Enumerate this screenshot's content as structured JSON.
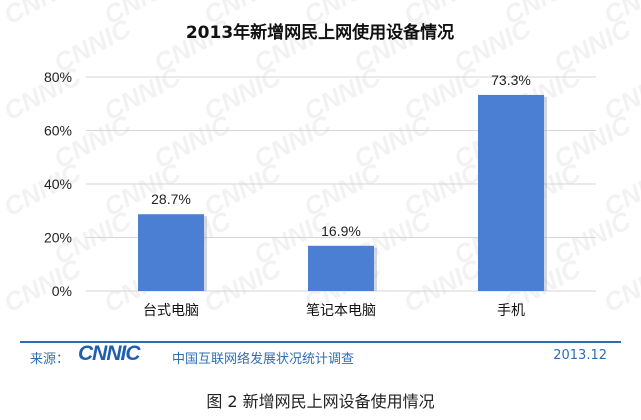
{
  "chart_data": {
    "type": "bar",
    "title": "2013年新增网民上网使用设备情况",
    "categories": [
      "台式电脑",
      "笔记本电脑",
      "手机"
    ],
    "values": [
      28.7,
      16.9,
      73.3
    ],
    "value_labels": [
      "28.7%",
      "16.9%",
      "73.3%"
    ],
    "ylim": [
      0,
      80
    ],
    "yticks": [
      "0%",
      "20%",
      "40%",
      "60%",
      "80%"
    ],
    "ytick_values": [
      0,
      20,
      40,
      60,
      80
    ],
    "xlabel": "",
    "ylabel": "",
    "grid": true,
    "bar_color": "#4a7fd4",
    "grid_color": "#d6d6d6"
  },
  "watermark": "CNNIC",
  "footer": {
    "source_label": "来源：",
    "logo_text": "CNNIC",
    "org": "中国互联网络发展状况统计调查",
    "date": "2013.12"
  },
  "caption": "图  2 新增网民上网设备使用情况"
}
